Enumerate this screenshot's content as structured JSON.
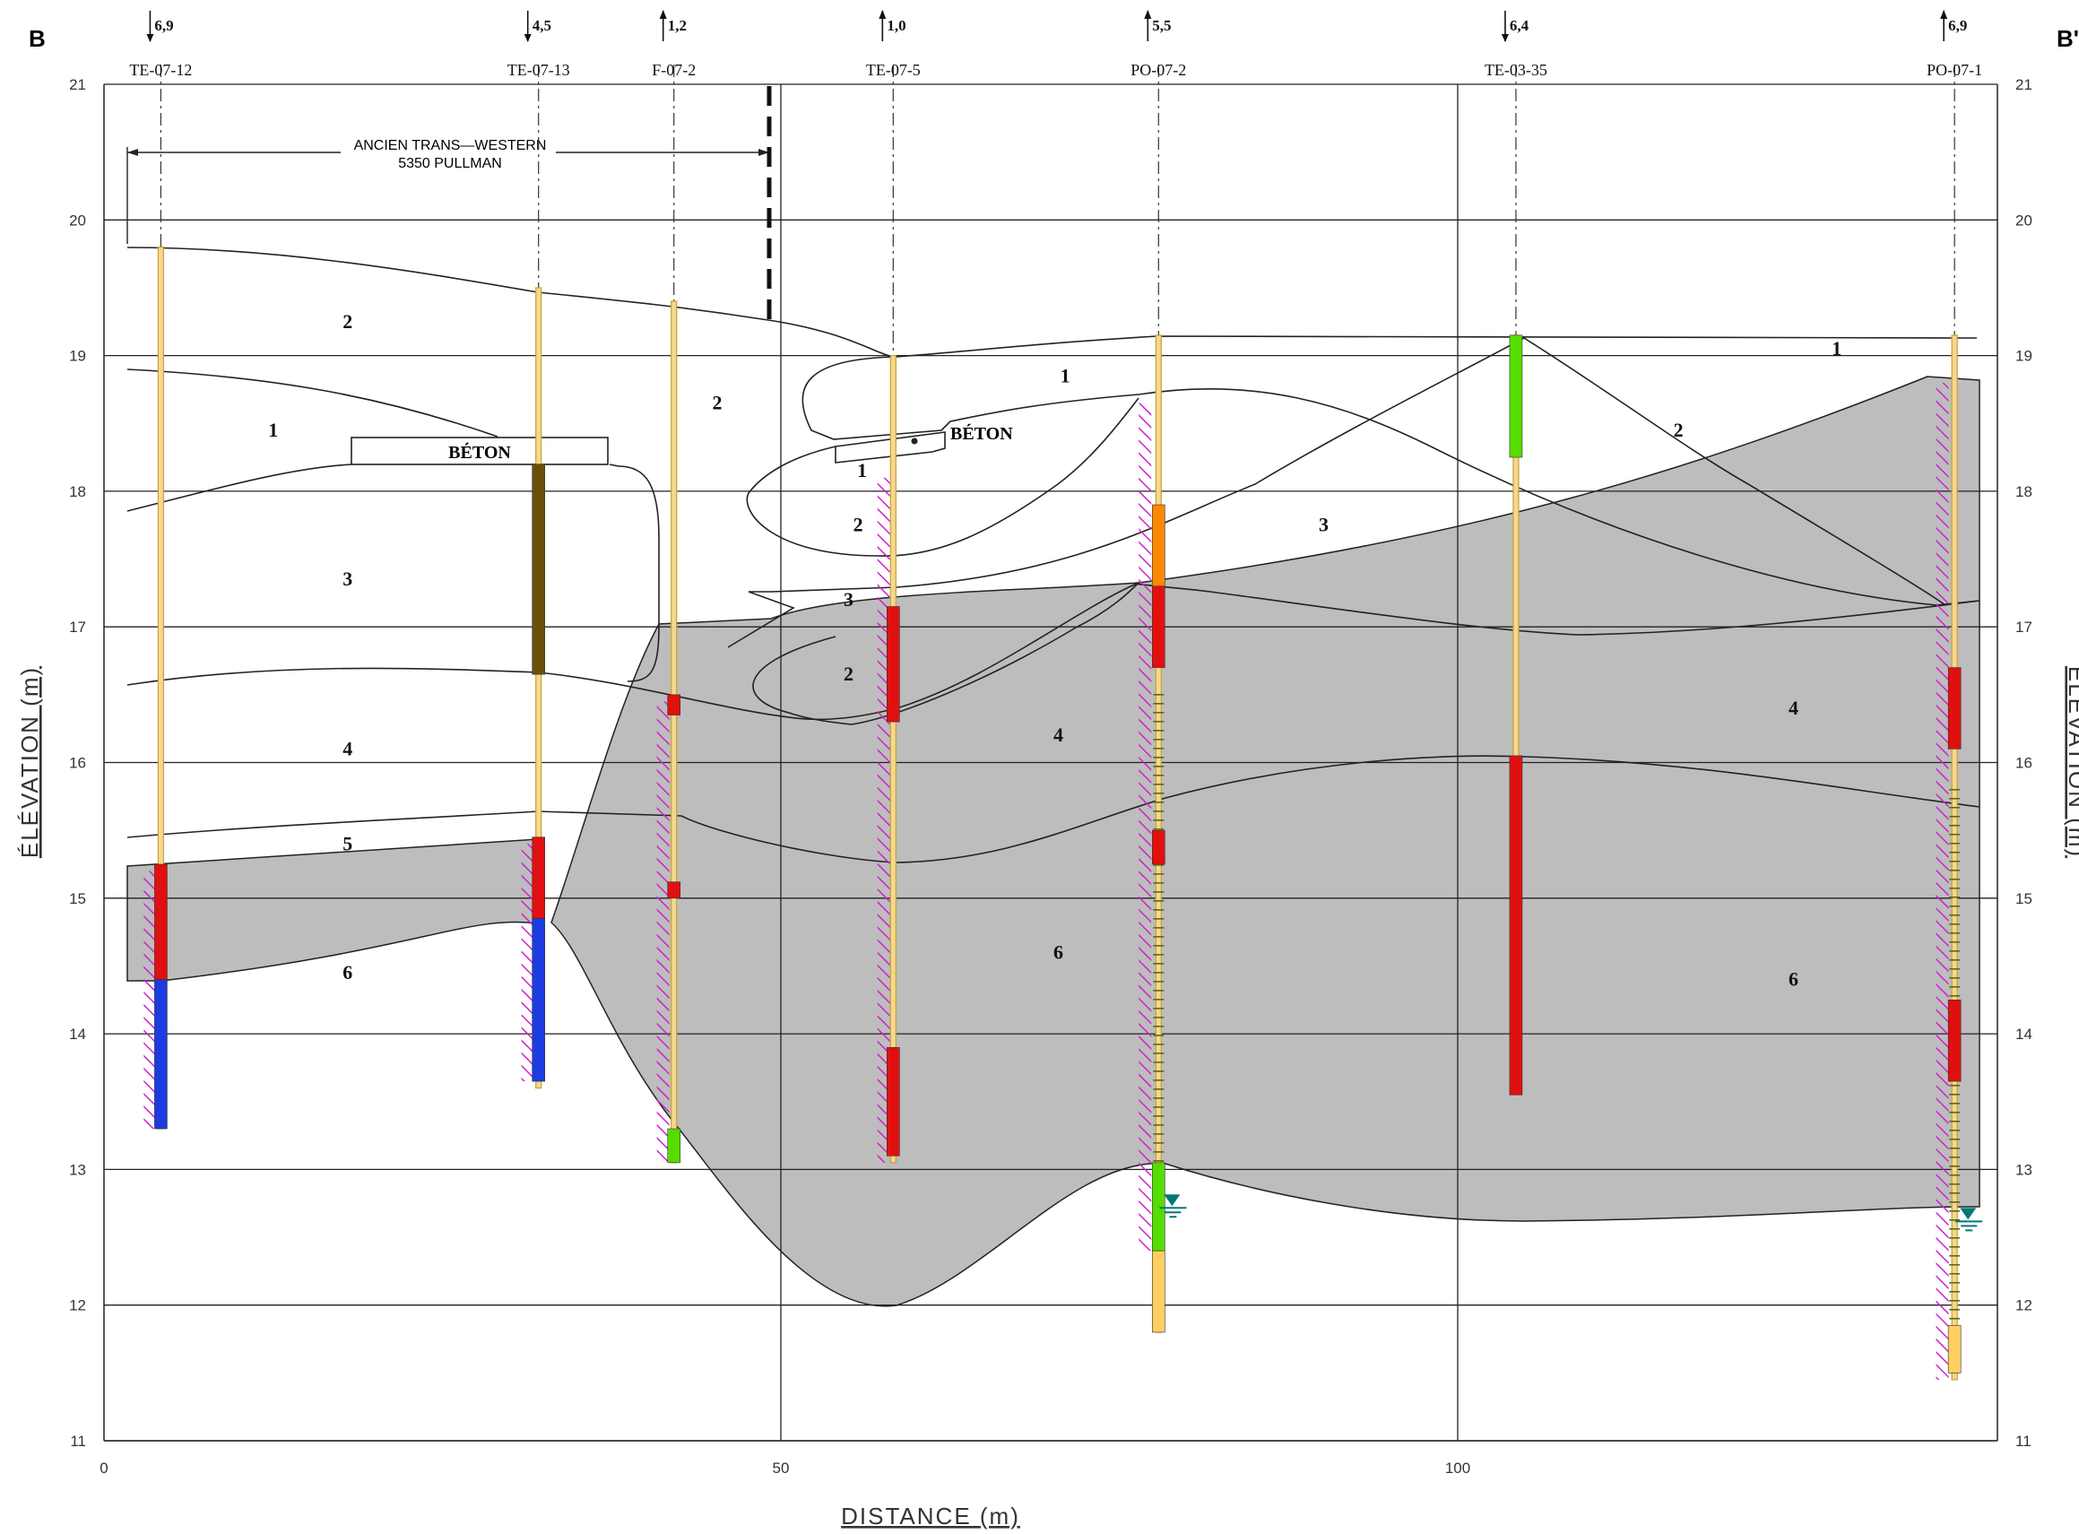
{
  "section": {
    "start_label": "B",
    "end_label": "B'"
  },
  "axes": {
    "x_label": "DISTANCE  (m)",
    "y_label": "ÉLÉVATION  (m)",
    "x_ticks": [
      0,
      50,
      100
    ],
    "y_ticks": [
      11,
      12,
      13,
      14,
      15,
      16,
      17,
      18,
      19,
      20,
      21
    ],
    "x_range": [
      0,
      140
    ],
    "y_range": [
      11,
      21
    ]
  },
  "boreholes": [
    {
      "id": "TE-07-12",
      "x": 4.2,
      "top": 19.8,
      "bottom": 13.3,
      "offset": "6,9",
      "dir": "down"
    },
    {
      "id": "TE-07-13",
      "x": 32.1,
      "top": 19.5,
      "bottom": 13.6,
      "offset": "4,5",
      "dir": "down"
    },
    {
      "id": "F-07-2",
      "x": 42.1,
      "top": 19.4,
      "bottom": 13.05,
      "offset": "1,2",
      "dir": "up"
    },
    {
      "id": "TE-07-5",
      "x": 58.3,
      "top": 19.0,
      "bottom": 13.05,
      "offset": "1,0",
      "dir": "up"
    },
    {
      "id": "PO-07-2",
      "x": 77.9,
      "top": 19.15,
      "bottom": 11.8,
      "offset": "5,5",
      "dir": "up"
    },
    {
      "id": "TE-03-35",
      "x": 104.3,
      "top": 19.15,
      "bottom": 13.55,
      "offset": "6,4",
      "dir": "down"
    },
    {
      "id": "PO-07-1",
      "x": 136.7,
      "top": 19.15,
      "bottom": 11.45,
      "offset": "6,9",
      "dir": "up"
    }
  ],
  "annotations": {
    "property_line1": "ANCIEN TRANS—WESTERN",
    "property_line2": "5350 PULLMAN",
    "concrete_1": "BÉTON",
    "concrete_2": "BÉTON"
  },
  "units": [
    {
      "label": "2",
      "x": 18,
      "y": 19.25
    },
    {
      "label": "1",
      "x": 12.5,
      "y": 18.45
    },
    {
      "label": "3",
      "x": 18,
      "y": 17.35
    },
    {
      "label": "4",
      "x": 18,
      "y": 16.1
    },
    {
      "label": "5",
      "x": 18,
      "y": 15.4
    },
    {
      "label": "6",
      "x": 18,
      "y": 14.45
    },
    {
      "label": "2",
      "x": 45.3,
      "y": 18.65
    },
    {
      "label": "1",
      "x": 71,
      "y": 18.85
    },
    {
      "label": "1",
      "x": 56,
      "y": 18.15
    },
    {
      "label": "2",
      "x": 55.7,
      "y": 17.75
    },
    {
      "label": "3",
      "x": 55,
      "y": 17.2
    },
    {
      "label": "2",
      "x": 55,
      "y": 16.65
    },
    {
      "label": "4",
      "x": 70.5,
      "y": 16.2
    },
    {
      "label": "6",
      "x": 70.5,
      "y": 14.6
    },
    {
      "label": "3",
      "x": 90.1,
      "y": 17.75
    },
    {
      "label": "1",
      "x": 128,
      "y": 19.05
    },
    {
      "label": "2",
      "x": 116.3,
      "y": 18.45
    },
    {
      "label": "4",
      "x": 124.8,
      "y": 16.4
    },
    {
      "label": "6",
      "x": 124.8,
      "y": 14.4
    }
  ],
  "colors": {
    "shading": "#bdbdbd",
    "hatch": "#d01fd0",
    "red": "#e01010",
    "green": "#55dd00",
    "blue": "#1c3ce0",
    "brown": "#6b4e0c",
    "orange": "#ff8800",
    "yellow": "#ffd060",
    "water": "#007878",
    "casing": "#c8a032"
  },
  "intervals": [
    {
      "x": 4.2,
      "from": 15.25,
      "to": 14.4,
      "color": "red"
    },
    {
      "x": 4.2,
      "from": 14.4,
      "to": 13.3,
      "color": "blue"
    },
    {
      "x": 32.1,
      "from": 18.2,
      "to": 16.65,
      "color": "brown"
    },
    {
      "x": 32.1,
      "from": 15.45,
      "to": 14.85,
      "color": "red"
    },
    {
      "x": 32.1,
      "from": 14.85,
      "to": 13.65,
      "color": "blue"
    },
    {
      "x": 42.1,
      "from": 16.5,
      "to": 16.35,
      "color": "red"
    },
    {
      "x": 42.1,
      "from": 15.12,
      "to": 15.0,
      "color": "red"
    },
    {
      "x": 42.1,
      "from": 13.3,
      "to": 13.05,
      "color": "green"
    },
    {
      "x": 58.3,
      "from": 17.15,
      "to": 16.3,
      "color": "red"
    },
    {
      "x": 58.3,
      "from": 13.9,
      "to": 13.1,
      "color": "red"
    },
    {
      "x": 77.9,
      "from": 17.9,
      "to": 17.3,
      "color": "orange"
    },
    {
      "x": 77.9,
      "from": 17.3,
      "to": 16.7,
      "color": "red"
    },
    {
      "x": 77.9,
      "from": 15.5,
      "to": 15.25,
      "color": "red"
    },
    {
      "x": 77.9,
      "from": 13.05,
      "to": 12.4,
      "color": "green"
    },
    {
      "x": 77.9,
      "from": 12.4,
      "to": 11.8,
      "color": "yellow"
    },
    {
      "x": 104.3,
      "from": 19.15,
      "to": 18.25,
      "color": "green"
    },
    {
      "x": 104.3,
      "from": 16.05,
      "to": 13.55,
      "color": "red"
    },
    {
      "x": 136.7,
      "from": 16.7,
      "to": 16.1,
      "color": "red"
    },
    {
      "x": 136.7,
      "from": 14.25,
      "to": 13.65,
      "color": "red"
    },
    {
      "x": 136.7,
      "from": 11.85,
      "to": 11.5,
      "color": "yellow"
    }
  ],
  "hatches": [
    {
      "x": 3.4,
      "from": 15.2,
      "to": 13.3
    },
    {
      "x": 31.3,
      "from": 15.4,
      "to": 13.65
    },
    {
      "x": 41.3,
      "from": 16.45,
      "to": 13.05
    },
    {
      "x": 57.6,
      "from": 18.1,
      "to": 13.05
    },
    {
      "x": 76.9,
      "from": 18.65,
      "to": 12.4
    },
    {
      "x": 135.8,
      "from": 18.8,
      "to": 11.45
    }
  ],
  "water_levels": [
    {
      "x": 78.9,
      "level": 12.75
    },
    {
      "x": 137.7,
      "level": 12.65
    }
  ]
}
